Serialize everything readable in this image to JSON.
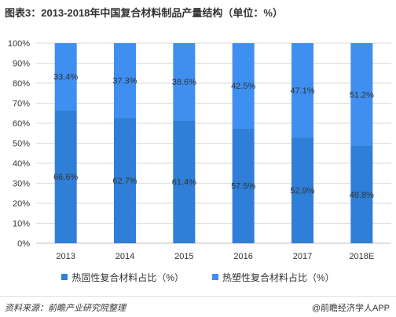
{
  "title": "图表3：2013-2018年中国复合材料制品产量结构（单位：%）",
  "footer": {
    "source": "资料来源：前瞻产业研究院整理",
    "brand": "@前瞻经济学人APP"
  },
  "colors": {
    "bottom_series": "#2f7fd8",
    "top_series": "#3f8ff0",
    "axis": "#bfbfbf",
    "grid": "#d9d9d9",
    "text": "#333333"
  },
  "chart_data": {
    "type": "bar",
    "stacked": true,
    "percent": true,
    "categories": [
      "2013",
      "2014",
      "2015",
      "2016",
      "2017",
      "2018E"
    ],
    "series": [
      {
        "name": "热固性复合材料占比（%）",
        "values": [
          66.6,
          62.7,
          61.4,
          57.5,
          52.9,
          48.8
        ]
      },
      {
        "name": "热塑性复合材料占比（%）",
        "values": [
          33.4,
          37.3,
          38.6,
          42.5,
          47.1,
          51.2
        ]
      }
    ],
    "value_labels": [
      [
        "66.6%",
        "62.7%",
        "61.4%",
        "57.5%",
        "52.9%",
        "48.8%"
      ],
      [
        "33.4%",
        "37.3%",
        "38.6%",
        "42.5%",
        "47.1%",
        "51.2%"
      ]
    ],
    "y_ticks": [
      "0%",
      "10%",
      "20%",
      "30%",
      "40%",
      "50%",
      "60%",
      "70%",
      "80%",
      "90%",
      "100%"
    ],
    "ylim": [
      0,
      100
    ],
    "grid": true,
    "legend": "bottom"
  }
}
